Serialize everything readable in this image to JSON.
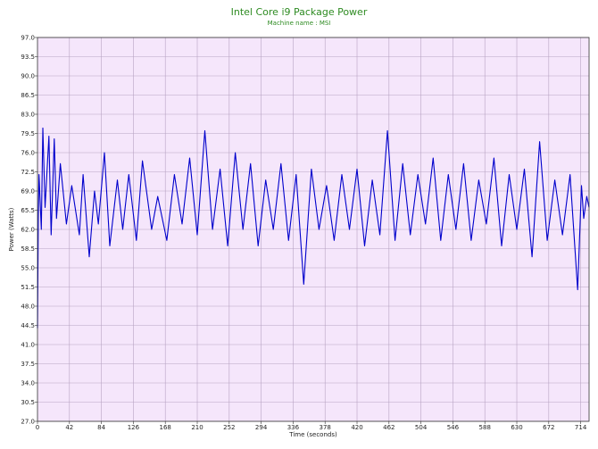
{
  "chart_data": {
    "type": "line",
    "title": "Intel Core i9 Package Power",
    "subtitle": "Machine name : MSI",
    "xlabel": "Time (seconds)",
    "ylabel": "Power (Watts)",
    "xlim": [
      0,
      725
    ],
    "ylim": [
      27.0,
      97.0
    ],
    "xticks": [
      "0",
      "42",
      "84",
      "126",
      "168",
      "210",
      "252",
      "294",
      "336",
      "378",
      "420",
      "462",
      "504",
      "546",
      "588",
      "630",
      "672",
      "714"
    ],
    "yticks": [
      "27.0",
      "30.5",
      "34.0",
      "37.5",
      "41.0",
      "44.5",
      "48.0",
      "51.5",
      "55.0",
      "58.5",
      "62.0",
      "65.5",
      "69.0",
      "72.5",
      "76.0",
      "79.5",
      "83.0",
      "86.5",
      "90.0",
      "93.5",
      "97.0"
    ],
    "grid": true,
    "series": [
      {
        "color": "#0000cc",
        "sampling": "piecewise-linear envelope of a dense ~1 s signal (individual samples not legible)",
        "x": [
          0,
          1,
          2,
          5,
          7,
          10,
          15,
          18,
          22,
          25,
          30,
          38,
          45,
          55,
          60,
          68,
          75,
          80,
          88,
          95,
          105,
          112,
          120,
          130,
          138,
          150,
          158,
          170,
          180,
          190,
          200,
          210,
          220,
          230,
          240,
          250,
          260,
          270,
          280,
          290,
          300,
          310,
          320,
          330,
          340,
          350,
          360,
          370,
          380,
          390,
          400,
          410,
          420,
          430,
          440,
          450,
          460,
          470,
          480,
          490,
          500,
          510,
          520,
          530,
          540,
          550,
          560,
          570,
          580,
          590,
          600,
          610,
          620,
          630,
          640,
          650,
          660,
          670,
          680,
          690,
          700,
          710,
          715,
          718,
          722,
          725
        ],
        "y": [
          44.0,
          64.0,
          72.0,
          62.0,
          80.5,
          66.0,
          79.0,
          61.0,
          78.5,
          64.0,
          74.0,
          63.0,
          70.0,
          61.0,
          72.0,
          57.0,
          69.0,
          63.0,
          76.0,
          59.0,
          71.0,
          62.0,
          72.0,
          60.0,
          74.5,
          62.0,
          68.0,
          60.0,
          72.0,
          63.0,
          75.0,
          61.0,
          80.0,
          62.0,
          73.0,
          59.0,
          76.0,
          62.0,
          74.0,
          59.0,
          71.0,
          62.0,
          74.0,
          60.0,
          72.0,
          52.0,
          73.0,
          62.0,
          70.0,
          60.0,
          72.0,
          62.0,
          73.0,
          59.0,
          71.0,
          61.0,
          80.0,
          60.0,
          74.0,
          61.0,
          72.0,
          63.0,
          75.0,
          60.0,
          72.0,
          62.0,
          74.0,
          60.0,
          71.0,
          63.0,
          75.0,
          59.0,
          72.0,
          62.0,
          73.0,
          57.0,
          78.0,
          60.0,
          71.0,
          61.0,
          72.0,
          51.0,
          70.0,
          64.0,
          68.0,
          66.0
        ]
      }
    ]
  },
  "colors": {
    "plot_background": "#f5e6fb",
    "grid": "#b8a3c3",
    "line": "#0000cc",
    "title": "#2e8b22"
  }
}
